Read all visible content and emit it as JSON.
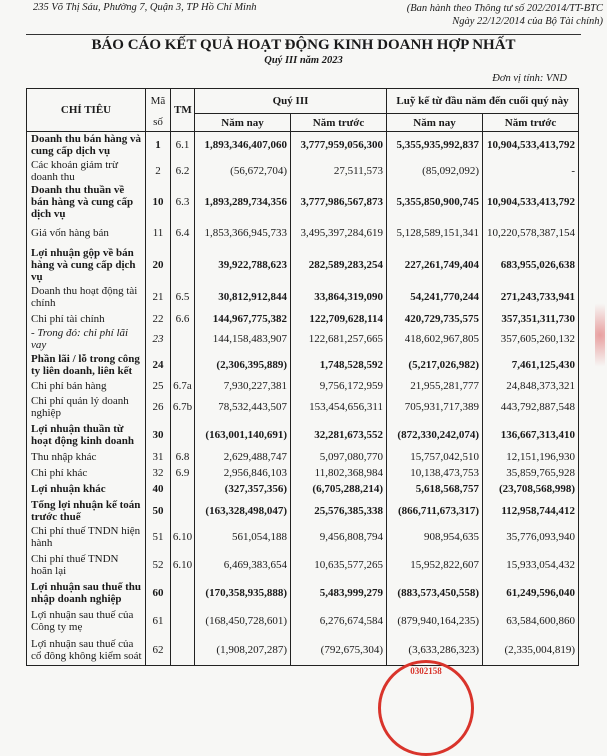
{
  "header": {
    "address": "235 Võ Thị Sáu, Phường 7, Quận 3, TP Hồ Chí Minh",
    "circular_line1": "(Ban hành theo Thông tư số 202/2014/TT-BTC",
    "circular_line2": "Ngày 22/12/2014 của Bộ Tài chính)",
    "title": "BÁO CÁO KẾT QUẢ HOẠT ĐỘNG KINH DOANH  HỢP NHẤT",
    "subtitle": "Quý III năm 2023",
    "unit": "Đơn vị tính: VND"
  },
  "table": {
    "col_indicator": "CHỈ TIÊU",
    "col_code_1": "Mã",
    "col_code_2": "số",
    "col_tm": "TM",
    "group_quarter": "Quý III",
    "group_ytd": "Luỹ kế từ đầu năm đến cuối quý này",
    "sub_this_year": "Năm nay",
    "sub_last_year": "Năm trước",
    "sub_this_year_2": "Năm nay",
    "sub_last_year_2": "Năm trước",
    "rows": [
      {
        "label": "Doanh thu bán hàng và cung cấp dịch vụ",
        "code": "1",
        "tm": "6.1",
        "q_now": "1,893,346,407,060",
        "q_prev": "3,777,959,056,300",
        "ytd_now": "5,355,935,992,837",
        "ytd_prev": "10,904,533,413,792",
        "style": "b bv"
      },
      {
        "label": "Các khoản giảm trừ doanh thu",
        "code": "2",
        "tm": "6.2",
        "q_now": "(56,672,704)",
        "q_prev": "27,511,573",
        "ytd_now": "(85,092,092)",
        "ytd_prev": "-",
        "style": ""
      },
      {
        "label": "Doanh thu thuần về bán hàng và cung cấp dịch vụ",
        "code": "10",
        "tm": "6.3",
        "q_now": "1,893,289,734,356",
        "q_prev": "3,777,986,567,873",
        "ytd_now": "5,355,850,900,745",
        "ytd_prev": "10,904,533,413,792",
        "style": "b bv"
      },
      {
        "label": "Giá vốn hàng bán",
        "code": "11",
        "tm": "6.4",
        "q_now": "1,853,366,945,733",
        "q_prev": "3,495,397,284,619",
        "ytd_now": "5,128,589,151,341",
        "ytd_prev": "10,220,578,387,154",
        "style": ""
      },
      {
        "label": "Lợi nhuận gộp về bán hàng và cung cấp dịch vụ",
        "code": "20",
        "tm": "",
        "q_now": "39,922,788,623",
        "q_prev": "282,589,283,254",
        "ytd_now": "227,261,749,404",
        "ytd_prev": "683,955,026,638",
        "style": "b bv"
      },
      {
        "label": "Doanh thu hoạt động tài chính",
        "code": "21",
        "tm": "6.5",
        "q_now": "30,812,912,844",
        "q_prev": "33,864,319,090",
        "ytd_now": "54,241,770,244",
        "ytd_prev": "271,243,733,941",
        "style": "bv"
      },
      {
        "label": "Chi phí tài chính",
        "code": "22",
        "tm": "6.6",
        "q_now": "144,967,775,382",
        "q_prev": "122,709,628,114",
        "ytd_now": "420,729,735,575",
        "ytd_prev": "357,351,311,730",
        "style": "bv"
      },
      {
        "label": "- Trong đó: chi phí lãi vay",
        "code": "23",
        "tm": "",
        "q_now": "144,158,483,907",
        "q_prev": "122,681,257,665",
        "ytd_now": "418,602,967,805",
        "ytd_prev": "357,605,260,132",
        "style": "it"
      },
      {
        "label": "Phần lãi / lỗ trong công ty liên doanh, liên kết",
        "code": "24",
        "tm": "",
        "q_now": "(2,306,395,889)",
        "q_prev": "1,748,528,592",
        "ytd_now": "(5,217,026,982)",
        "ytd_prev": "7,461,125,430",
        "style": "b bv"
      },
      {
        "label": "Chi phí bán hàng",
        "code": "25",
        "tm": "6.7a",
        "q_now": "7,930,227,381",
        "q_prev": "9,756,172,959",
        "ytd_now": "21,955,281,777",
        "ytd_prev": "24,848,373,321",
        "style": ""
      },
      {
        "label": "Chi phí quản lý doanh nghiệp",
        "code": "26",
        "tm": "6.7b",
        "q_now": "78,532,443,507",
        "q_prev": "153,454,656,311",
        "ytd_now": "705,931,717,389",
        "ytd_prev": "443,792,887,548",
        "style": ""
      },
      {
        "label": "Lợi nhuận thuần từ hoạt động kinh doanh",
        "code": "30",
        "tm": "",
        "q_now": "(163,001,140,691)",
        "q_prev": "32,281,673,552",
        "ytd_now": "(872,330,242,074)",
        "ytd_prev": "136,667,313,410",
        "style": "b bv"
      },
      {
        "label": "Thu nhập khác",
        "code": "31",
        "tm": "6.8",
        "q_now": "2,629,488,747",
        "q_prev": "5,097,080,770",
        "ytd_now": "15,757,042,510",
        "ytd_prev": "12,151,196,930",
        "style": ""
      },
      {
        "label": "Chi phí khác",
        "code": "32",
        "tm": "6.9",
        "q_now": "2,956,846,103",
        "q_prev": "11,802,368,984",
        "ytd_now": "10,138,473,753",
        "ytd_prev": "35,859,765,928",
        "style": ""
      },
      {
        "label": "Lợi nhuận khác",
        "code": "40",
        "tm": "",
        "q_now": "(327,357,356)",
        "q_prev": "(6,705,288,214)",
        "ytd_now": "5,618,568,757",
        "ytd_prev": "(23,708,568,998)",
        "style": "b bv"
      },
      {
        "label": "Tổng lợi nhuận kế toán trước thuế",
        "code": "50",
        "tm": "",
        "q_now": "(163,328,498,047)",
        "q_prev": "25,576,385,338",
        "ytd_now": "(866,711,673,317)",
        "ytd_prev": "112,958,744,412",
        "style": "b bv"
      },
      {
        "label": "Chi phí thuế TNDN hiện hành",
        "code": "51",
        "tm": "6.10",
        "q_now": "561,054,188",
        "q_prev": "9,456,808,794",
        "ytd_now": "908,954,635",
        "ytd_prev": "35,776,093,940",
        "style": ""
      },
      {
        "label": "Chi phí thuế TNDN hoãn lại",
        "code": "52",
        "tm": "6.10",
        "q_now": "6,469,383,654",
        "q_prev": "10,635,577,265",
        "ytd_now": "15,952,822,607",
        "ytd_prev": "15,933,054,432",
        "style": ""
      },
      {
        "label": "Lợi nhuận sau thuế thu nhập doanh nghiệp",
        "code": "60",
        "tm": "",
        "q_now": "(170,358,935,888)",
        "q_prev": "5,483,999,279",
        "ytd_now": "(883,573,450,558)",
        "ytd_prev": "61,249,596,040",
        "style": "b bv"
      },
      {
        "label": "Lợi nhuận sau thuế của Công ty mẹ",
        "code": "61",
        "tm": "",
        "q_now": "(168,450,728,601)",
        "q_prev": "6,276,674,584",
        "ytd_now": "(879,940,164,235)",
        "ytd_prev": "63,584,600,860",
        "style": ""
      },
      {
        "label": "Lợi nhuận sau thuế của cổ đông không kiểm soát",
        "code": "62",
        "tm": "",
        "q_now": "(1,908,207,287)",
        "q_prev": "(792,675,304)",
        "ytd_now": "(3,633,286,323)",
        "ytd_prev": "(2,335,004,819)",
        "style": ""
      }
    ]
  },
  "stamp": {
    "text": "0302158"
  },
  "colors": {
    "stamp": "#d9342b"
  }
}
